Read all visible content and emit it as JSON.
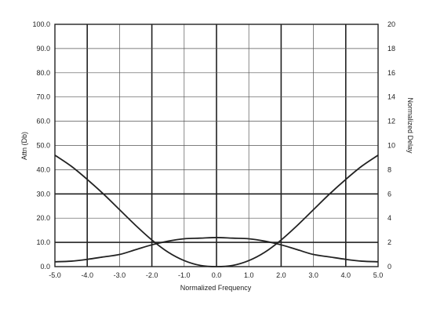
{
  "chart_data": {
    "type": "line",
    "title": "",
    "xlabel": "Normalized Frequency",
    "ylabel_left": "Attn (Db)",
    "ylabel_right": "Normalized Delay",
    "xlim": [
      -5,
      5
    ],
    "ylim_left": [
      0,
      100
    ],
    "ylim_right": [
      0,
      20
    ],
    "grid": true,
    "legend": "none",
    "x_ticks": [
      "-5.0",
      "-4.0",
      "-3.0",
      "-2.0",
      "-1.0",
      "0.0",
      "1.0",
      "2.0",
      "3.0",
      "4.0",
      "5.0"
    ],
    "y_left_ticks": [
      "0.0",
      "10.0",
      "20.0",
      "30.0",
      "40.0",
      "50.0",
      "60.0",
      "70.0",
      "80.0",
      "90.0",
      "100.0"
    ],
    "y_right_ticks": [
      "0",
      "2",
      "4",
      "6",
      "8",
      "10",
      "12",
      "14",
      "16",
      "18",
      "20"
    ],
    "series": [
      {
        "axis": "left",
        "x": [
          -5,
          -4.5,
          -4,
          -3.5,
          -3,
          -2.5,
          -2,
          -1.5,
          -1,
          -0.5,
          0,
          0.5,
          1,
          1.5,
          2,
          2.5,
          3,
          3.5,
          4,
          4.5,
          5
        ],
        "values": [
          46,
          41.5,
          36,
          30,
          23.5,
          17,
          11,
          6,
          2.5,
          0.5,
          0,
          0.5,
          2.5,
          6,
          11,
          17,
          23.5,
          30,
          36,
          41.5,
          46
        ]
      },
      {
        "axis": "right",
        "x": [
          -5,
          -4.5,
          -4,
          -3.5,
          -3,
          -2.5,
          -2,
          -1.5,
          -1,
          -0.5,
          0,
          0.5,
          1,
          1.5,
          2,
          2.5,
          3,
          3.5,
          4,
          4.5,
          5
        ],
        "values": [
          0.4,
          0.45,
          0.6,
          0.8,
          1.0,
          1.4,
          1.8,
          2.1,
          2.3,
          2.35,
          2.4,
          2.35,
          2.3,
          2.1,
          1.8,
          1.4,
          1.0,
          0.8,
          0.6,
          0.45,
          0.4
        ]
      }
    ],
    "colors": {
      "line": "#222222",
      "grid_major": "#222222",
      "grid_minor": "#555555"
    }
  }
}
